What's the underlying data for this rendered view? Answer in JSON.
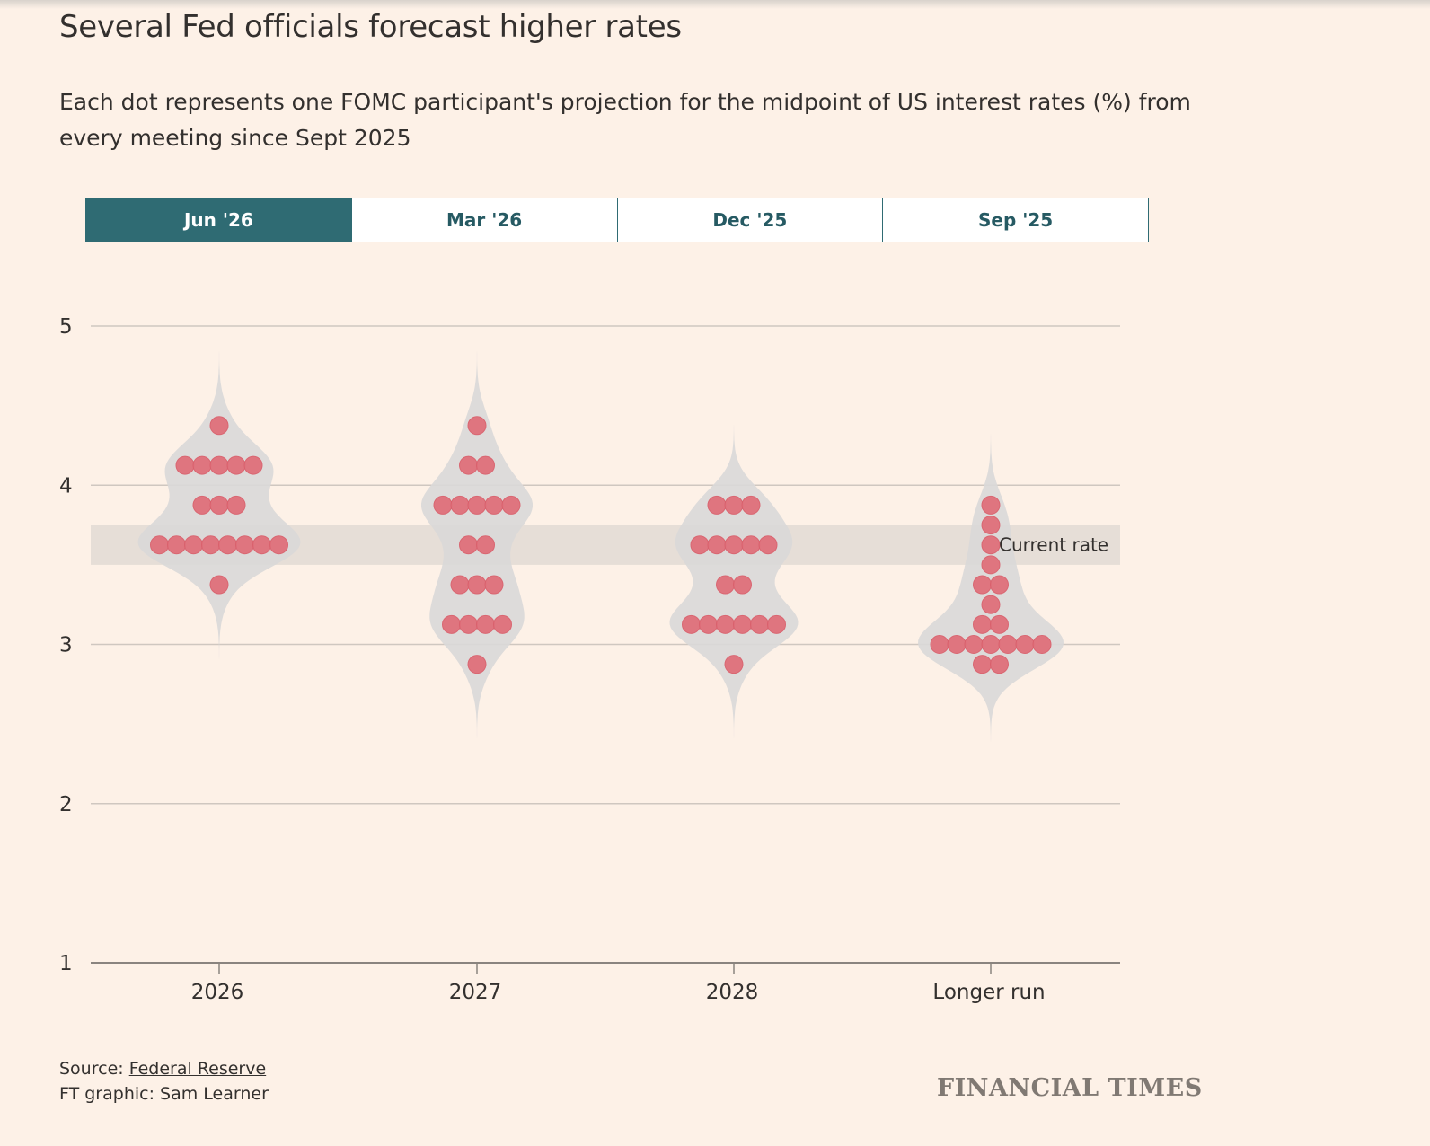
{
  "title": "Several Fed officials forecast higher rates",
  "subtitle": "Each dot represents one FOMC participant's projection for the midpoint of US interest rates (%) from every meeting since Sept 2025",
  "tabs": [
    {
      "label": "Jun '26",
      "active": true
    },
    {
      "label": "Mar '26",
      "active": false
    },
    {
      "label": "Dec '25",
      "active": false
    },
    {
      "label": "Sep '25",
      "active": false
    }
  ],
  "colors": {
    "background": "#fdf1e7",
    "dot": "#e0707b",
    "violin": "#d9d8d8",
    "current_rate_band": "#e2dbd4",
    "tab_active": "#2f6b73",
    "gridline": "#cfc7c0"
  },
  "chart_data": {
    "type": "scatter",
    "categories": [
      "2026",
      "2027",
      "2028",
      "Longer run"
    ],
    "ylim": [
      1,
      5
    ],
    "yticks": [
      1,
      2,
      3,
      4,
      5
    ],
    "grid": true,
    "current_rate": {
      "label": "Current rate",
      "range": [
        3.5,
        3.75
      ],
      "midpoint": 3.625
    },
    "series": [
      {
        "category": "2026",
        "values": [
          {
            "y": 4.375,
            "count": 1
          },
          {
            "y": 4.125,
            "count": 5
          },
          {
            "y": 3.875,
            "count": 3
          },
          {
            "y": 3.625,
            "count": 8
          },
          {
            "y": 3.375,
            "count": 1
          }
        ]
      },
      {
        "category": "2027",
        "values": [
          {
            "y": 4.375,
            "count": 1
          },
          {
            "y": 4.125,
            "count": 2
          },
          {
            "y": 3.875,
            "count": 5
          },
          {
            "y": 3.625,
            "count": 2
          },
          {
            "y": 3.375,
            "count": 3
          },
          {
            "y": 3.125,
            "count": 4
          },
          {
            "y": 2.875,
            "count": 1
          }
        ]
      },
      {
        "category": "2028",
        "values": [
          {
            "y": 3.875,
            "count": 3
          },
          {
            "y": 3.625,
            "count": 5
          },
          {
            "y": 3.375,
            "count": 2
          },
          {
            "y": 3.125,
            "count": 6
          },
          {
            "y": 2.875,
            "count": 1
          }
        ]
      },
      {
        "category": "Longer run",
        "values": [
          {
            "y": 3.875,
            "count": 1
          },
          {
            "y": 3.75,
            "count": 1
          },
          {
            "y": 3.625,
            "count": 1
          },
          {
            "y": 3.5,
            "count": 1
          },
          {
            "y": 3.375,
            "count": 2
          },
          {
            "y": 3.25,
            "count": 1
          },
          {
            "y": 3.125,
            "count": 2
          },
          {
            "y": 3.0,
            "count": 7
          },
          {
            "y": 2.875,
            "count": 2
          }
        ]
      }
    ]
  },
  "source": {
    "prefix": "Source: ",
    "link_text": "Federal Reserve",
    "credit": "FT graphic: Sam Learner"
  },
  "logo": "FINANCIAL TIMES"
}
